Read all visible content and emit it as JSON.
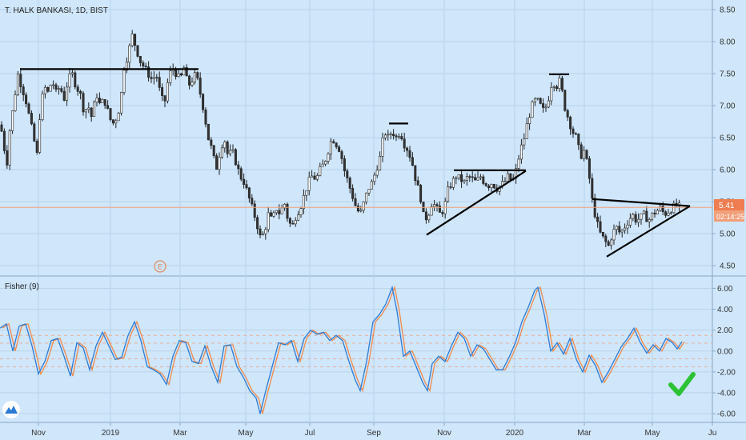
{
  "chart_data": [
    {
      "type": "candlestick",
      "title": "T. HALK BANKASI, 1D, BIST",
      "ylim": [
        4.4,
        8.6
      ],
      "y_ticks": [
        "8.50",
        "8.00",
        "7.50",
        "7.00",
        "6.50",
        "6.00",
        "5.50",
        "5.00",
        "4.50"
      ],
      "y_tick_values": [
        8.5,
        8.0,
        7.5,
        7.0,
        6.5,
        6.0,
        5.5,
        5.0,
        4.5
      ],
      "last_price_label": "5.41",
      "last_price": 5.41,
      "countdown_label": "02:14:25",
      "earnings_marker": "E",
      "colors": {
        "up": "#ffffff",
        "down": "#333333",
        "wick": "#222222",
        "price_line": "#f0a07a",
        "price_badge": "#ef7d52",
        "trendline": "#000000"
      },
      "price_path": [
        [
          0,
          6.7
        ],
        [
          4,
          6.5
        ],
        [
          8,
          6.0
        ],
        [
          12,
          6.6
        ],
        [
          18,
          7.1
        ],
        [
          22,
          7.5
        ],
        [
          27,
          7.3
        ],
        [
          32,
          7.1
        ],
        [
          37,
          6.8
        ],
        [
          42,
          6.5
        ],
        [
          46,
          6.2
        ],
        [
          50,
          6.9
        ],
        [
          55,
          7.3
        ],
        [
          60,
          7.2
        ],
        [
          65,
          7.4
        ],
        [
          70,
          7.2
        ],
        [
          75,
          7.3
        ],
        [
          80,
          7.1
        ],
        [
          85,
          7.4
        ],
        [
          90,
          7.5
        ],
        [
          95,
          7.3
        ],
        [
          100,
          7.2
        ],
        [
          105,
          6.9
        ],
        [
          110,
          7.0
        ],
        [
          115,
          6.8
        ],
        [
          120,
          7.2
        ],
        [
          125,
          7.0
        ],
        [
          130,
          7.1
        ],
        [
          135,
          6.9
        ],
        [
          140,
          6.7
        ],
        [
          145,
          6.8
        ],
        [
          150,
          7.0
        ],
        [
          155,
          7.6
        ],
        [
          160,
          7.8
        ],
        [
          165,
          8.1
        ],
        [
          170,
          7.9
        ],
        [
          175,
          7.7
        ],
        [
          180,
          7.6
        ],
        [
          185,
          7.5
        ],
        [
          190,
          7.4
        ],
        [
          195,
          7.5
        ],
        [
          200,
          7.2
        ],
        [
          205,
          7.0
        ],
        [
          210,
          7.4
        ],
        [
          215,
          7.6
        ],
        [
          220,
          7.5
        ],
        [
          225,
          7.4
        ],
        [
          230,
          7.6
        ],
        [
          235,
          7.3
        ],
        [
          240,
          7.4
        ],
        [
          245,
          7.5
        ],
        [
          250,
          7.2
        ],
        [
          255,
          6.9
        ],
        [
          260,
          6.5
        ],
        [
          265,
          6.3
        ],
        [
          270,
          6.0
        ],
        [
          275,
          6.3
        ],
        [
          280,
          6.5
        ],
        [
          285,
          6.2
        ],
        [
          290,
          6.3
        ],
        [
          295,
          6.1
        ],
        [
          300,
          5.9
        ],
        [
          305,
          5.8
        ],
        [
          310,
          5.6
        ],
        [
          315,
          5.4
        ],
        [
          320,
          5.2
        ],
        [
          325,
          4.95
        ],
        [
          330,
          5.0
        ],
        [
          335,
          5.3
        ],
        [
          340,
          5.2
        ],
        [
          345,
          5.4
        ],
        [
          350,
          5.3
        ],
        [
          355,
          5.5
        ],
        [
          360,
          5.2
        ],
        [
          365,
          5.1
        ],
        [
          370,
          5.3
        ],
        [
          375,
          5.4
        ],
        [
          380,
          5.6
        ],
        [
          385,
          5.8
        ],
        [
          390,
          5.9
        ],
        [
          395,
          5.85
        ],
        [
          400,
          6.0
        ],
        [
          405,
          6.1
        ],
        [
          410,
          6.3
        ],
        [
          415,
          6.5
        ],
        [
          420,
          6.4
        ],
        [
          425,
          6.3
        ],
        [
          430,
          6.0
        ],
        [
          435,
          5.8
        ],
        [
          440,
          5.6
        ],
        [
          445,
          5.4
        ],
        [
          450,
          5.3
        ],
        [
          455,
          5.5
        ],
        [
          460,
          5.7
        ],
        [
          465,
          5.8
        ],
        [
          470,
          6.0
        ],
        [
          475,
          6.2
        ],
        [
          480,
          6.6
        ],
        [
          485,
          6.5
        ],
        [
          490,
          6.6
        ],
        [
          495,
          6.5
        ],
        [
          500,
          6.6
        ],
        [
          505,
          6.4
        ],
        [
          510,
          6.3
        ],
        [
          515,
          6.1
        ],
        [
          520,
          5.8
        ],
        [
          525,
          5.6
        ],
        [
          530,
          5.2
        ],
        [
          535,
          5.3
        ],
        [
          540,
          5.5
        ],
        [
          545,
          5.4
        ],
        [
          550,
          5.3
        ],
        [
          555,
          5.4
        ],
        [
          560,
          5.7
        ],
        [
          565,
          5.8
        ],
        [
          570,
          5.9
        ],
        [
          575,
          5.85
        ],
        [
          580,
          5.8
        ],
        [
          585,
          5.9
        ],
        [
          590,
          5.85
        ],
        [
          595,
          5.8
        ],
        [
          600,
          5.9
        ],
        [
          605,
          5.8
        ],
        [
          610,
          5.75
        ],
        [
          615,
          5.8
        ],
        [
          620,
          5.7
        ],
        [
          625,
          5.75
        ],
        [
          630,
          5.8
        ],
        [
          635,
          5.9
        ],
        [
          640,
          5.8
        ],
        [
          645,
          6.0
        ],
        [
          650,
          6.3
        ],
        [
          655,
          6.5
        ],
        [
          660,
          6.8
        ],
        [
          665,
          7.0
        ],
        [
          670,
          7.1
        ],
        [
          675,
          7.0
        ],
        [
          680,
          6.9
        ],
        [
          685,
          7.1
        ],
        [
          690,
          7.4
        ],
        [
          695,
          7.3
        ],
        [
          700,
          7.4
        ],
        [
          705,
          7.0
        ],
        [
          710,
          6.8
        ],
        [
          715,
          6.6
        ],
        [
          720,
          6.5
        ],
        [
          725,
          6.2
        ],
        [
          730,
          6.3
        ],
        [
          735,
          6.0
        ],
        [
          740,
          5.5
        ],
        [
          745,
          5.2
        ],
        [
          750,
          5.0
        ],
        [
          755,
          4.9
        ],
        [
          760,
          4.8
        ],
        [
          765,
          5.0
        ],
        [
          770,
          5.1
        ],
        [
          775,
          5.0
        ],
        [
          780,
          5.1
        ],
        [
          785,
          5.2
        ],
        [
          790,
          5.3
        ],
        [
          795,
          5.2
        ],
        [
          800,
          5.25
        ],
        [
          805,
          5.3
        ],
        [
          810,
          5.2
        ],
        [
          815,
          5.3
        ],
        [
          820,
          5.35
        ],
        [
          825,
          5.4
        ],
        [
          830,
          5.3
        ],
        [
          835,
          5.35
        ],
        [
          840,
          5.4
        ],
        [
          845,
          5.45
        ],
        [
          850,
          5.41
        ]
      ],
      "x_ticks": [
        "Nov",
        "2019",
        "Mar",
        "May",
        "Jul",
        "Sep",
        "Nov",
        "2020",
        "Mar",
        "May",
        "Ju"
      ],
      "x_tick_pos": [
        48,
        138,
        225,
        307,
        387,
        467,
        555,
        643,
        730,
        815,
        890
      ]
    },
    {
      "type": "line",
      "title": "Fisher (9)",
      "ylim": [
        -6.6,
        6.8
      ],
      "y_ticks": [
        "6.00",
        "4.00",
        "2.00",
        "0.00",
        "-2.00",
        "-4.00",
        "-6.00"
      ],
      "y_tick_values": [
        6,
        4,
        2,
        0,
        -2,
        -4,
        -6
      ],
      "colors": {
        "fisher": "#2b7bd6",
        "trigger": "#f08a4b",
        "level": "#f0a07a"
      },
      "levels": [
        1.5,
        0.75,
        -0.75,
        -1.5
      ],
      "series": [
        {
          "values": [
            [
              0,
              2.2
            ],
            [
              8,
              2.6
            ],
            [
              16,
              0.0
            ],
            [
              24,
              2.4
            ],
            [
              32,
              2.6
            ],
            [
              40,
              0.5
            ],
            [
              48,
              -2.2
            ],
            [
              56,
              -1.0
            ],
            [
              64,
              1.0
            ],
            [
              72,
              1.2
            ],
            [
              80,
              -0.5
            ],
            [
              88,
              -2.4
            ],
            [
              96,
              0.8
            ],
            [
              104,
              0.3
            ],
            [
              112,
              -1.8
            ],
            [
              120,
              0.5
            ],
            [
              128,
              1.8
            ],
            [
              136,
              0.5
            ],
            [
              144,
              -0.8
            ],
            [
              152,
              -0.6
            ],
            [
              160,
              1.5
            ],
            [
              168,
              2.8
            ],
            [
              176,
              1.0
            ],
            [
              184,
              -1.5
            ],
            [
              192,
              -1.8
            ],
            [
              200,
              -2.2
            ],
            [
              208,
              -3.2
            ],
            [
              216,
              -0.5
            ],
            [
              224,
              1.0
            ],
            [
              232,
              0.8
            ],
            [
              240,
              -1.0
            ],
            [
              248,
              -1.2
            ],
            [
              256,
              0.5
            ],
            [
              264,
              -1.5
            ],
            [
              272,
              -3.0
            ],
            [
              280,
              0.5
            ],
            [
              288,
              0.6
            ],
            [
              296,
              -1.5
            ],
            [
              304,
              -2.5
            ],
            [
              312,
              -3.8
            ],
            [
              320,
              -4.5
            ],
            [
              325,
              -6.0
            ],
            [
              332,
              -3.8
            ],
            [
              340,
              -1.5
            ],
            [
              348,
              0.8
            ],
            [
              356,
              0.6
            ],
            [
              364,
              1.0
            ],
            [
              372,
              -1.0
            ],
            [
              380,
              1.2
            ],
            [
              388,
              2.0
            ],
            [
              396,
              1.6
            ],
            [
              404,
              1.8
            ],
            [
              412,
              1.0
            ],
            [
              420,
              1.5
            ],
            [
              428,
              1.0
            ],
            [
              436,
              -1.0
            ],
            [
              444,
              -2.8
            ],
            [
              450,
              -3.8
            ],
            [
              458,
              -1.0
            ],
            [
              466,
              2.8
            ],
            [
              474,
              3.5
            ],
            [
              482,
              4.5
            ],
            [
              490,
              6.1
            ],
            [
              496,
              3.8
            ],
            [
              504,
              -0.5
            ],
            [
              512,
              0.0
            ],
            [
              520,
              -1.5
            ],
            [
              528,
              -3.0
            ],
            [
              534,
              -3.8
            ],
            [
              540,
              -1.2
            ],
            [
              548,
              -0.5
            ],
            [
              556,
              -1.0
            ],
            [
              564,
              0.5
            ],
            [
              572,
              1.8
            ],
            [
              580,
              1.2
            ],
            [
              588,
              -0.5
            ],
            [
              596,
              0.6
            ],
            [
              604,
              0.2
            ],
            [
              612,
              -0.8
            ],
            [
              620,
              -1.8
            ],
            [
              628,
              -1.8
            ],
            [
              636,
              -0.6
            ],
            [
              644,
              0.8
            ],
            [
              652,
              2.8
            ],
            [
              660,
              4.2
            ],
            [
              668,
              5.8
            ],
            [
              672,
              6.1
            ],
            [
              680,
              3.5
            ],
            [
              688,
              0.0
            ],
            [
              696,
              0.8
            ],
            [
              704,
              -0.3
            ],
            [
              712,
              1.2
            ],
            [
              720,
              -0.8
            ],
            [
              728,
              -2.0
            ],
            [
              736,
              -0.4
            ],
            [
              744,
              -1.4
            ],
            [
              752,
              -3.0
            ],
            [
              760,
              -2.0
            ],
            [
              768,
              -0.8
            ],
            [
              776,
              0.4
            ],
            [
              784,
              1.2
            ],
            [
              792,
              2.2
            ],
            [
              800,
              0.8
            ],
            [
              808,
              -0.2
            ],
            [
              816,
              0.6
            ],
            [
              824,
              0.0
            ],
            [
              832,
              1.2
            ],
            [
              840,
              0.8
            ],
            [
              846,
              0.2
            ],
            [
              852,
              0.9
            ]
          ]
        }
      ],
      "x_ticks": [
        "Nov",
        "2019",
        "Mar",
        "May",
        "Jul",
        "Sep",
        "Nov",
        "2020",
        "Mar",
        "May",
        "Ju"
      ],
      "x_tick_pos": [
        48,
        138,
        225,
        307,
        387,
        467,
        555,
        643,
        730,
        815,
        890
      ]
    }
  ]
}
